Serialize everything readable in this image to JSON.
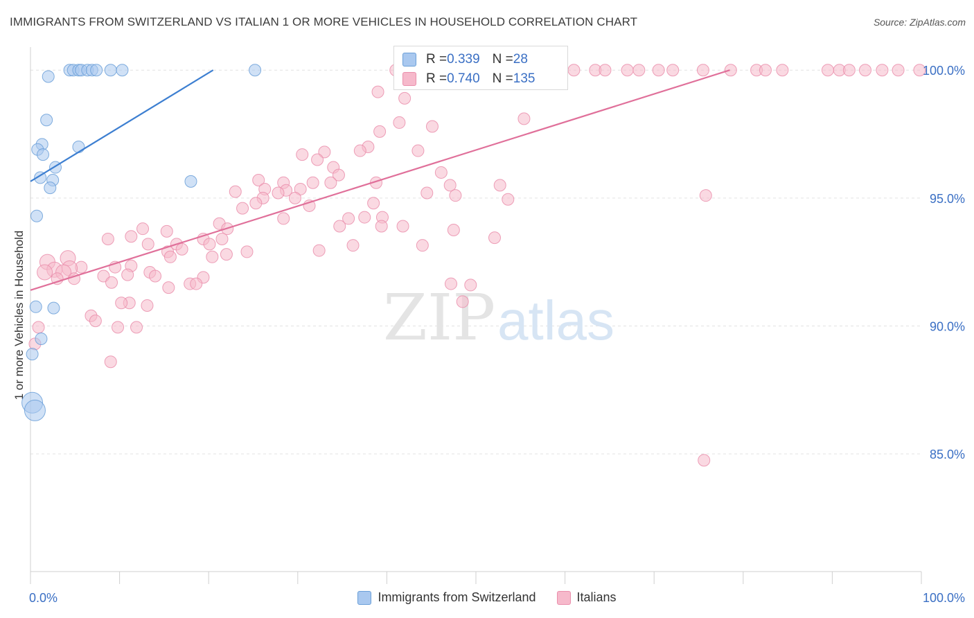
{
  "title": "IMMIGRANTS FROM SWITZERLAND VS ITALIAN 1 OR MORE VEHICLES IN HOUSEHOLD CORRELATION CHART",
  "source": "Source: ZipAtlas.com",
  "watermark": {
    "zip": "ZIP",
    "atlas": "atlas"
  },
  "stats": {
    "r_label": "R = ",
    "n_label": "N = ",
    "rows": [
      {
        "r": "0.339",
        "n": "28"
      },
      {
        "r": "0.740",
        "n": "135"
      }
    ]
  },
  "legend": [
    {
      "label": "Immigrants from Switzerland"
    },
    {
      "label": "Italians"
    }
  ],
  "colors": {
    "blue_fill": "#a9c8ef",
    "blue_stroke": "#6a9fd8",
    "blue_line": "#3d7fd1",
    "pink_fill": "#f6b9cb",
    "pink_stroke": "#ea8eab",
    "pink_line": "#e0709a",
    "tick_label": "#3a6fc4"
  },
  "chart_data": {
    "type": "scatter",
    "xlabel": "",
    "ylabel": "1 or more Vehicles in Household",
    "xlim": [
      0,
      100
    ],
    "ylim": [
      80.4,
      100.9
    ],
    "y_ticks": [
      {
        "value": 100,
        "label": "100.0%"
      },
      {
        "value": 95,
        "label": "95.0%"
      },
      {
        "value": 90,
        "label": "90.0%"
      },
      {
        "value": 85,
        "label": "85.0%"
      }
    ],
    "x_tick_labels": [
      {
        "value": 0,
        "label": "0.0%"
      },
      {
        "value": 100,
        "label": "100.0%"
      }
    ],
    "grid": true,
    "series": [
      {
        "name": "Immigrants from Switzerland",
        "trend": [
          [
            0.0,
            95.65
          ],
          [
            20.5,
            100.0
          ]
        ],
        "points": [
          [
            4.4,
            100
          ],
          [
            4.8,
            100
          ],
          [
            5.4,
            100
          ],
          [
            5.7,
            100
          ],
          [
            6.4,
            100
          ],
          [
            6.9,
            100
          ],
          [
            7.4,
            100
          ],
          [
            9.0,
            100
          ],
          [
            10.3,
            100
          ],
          [
            25.2,
            100
          ],
          [
            2.0,
            99.75
          ],
          [
            1.8,
            98.05
          ],
          [
            1.3,
            97.1
          ],
          [
            0.8,
            96.9
          ],
          [
            1.4,
            96.7
          ],
          [
            5.4,
            97.0
          ],
          [
            2.8,
            96.2
          ],
          [
            1.1,
            95.8
          ],
          [
            2.5,
            95.7
          ],
          [
            2.2,
            95.4
          ],
          [
            18.0,
            95.65
          ],
          [
            0.7,
            94.3
          ],
          [
            0.6,
            90.75
          ],
          [
            2.6,
            90.7
          ],
          [
            1.2,
            89.5
          ],
          [
            0.2,
            87.0
          ],
          [
            0.5,
            86.7
          ],
          [
            0.2,
            88.9
          ]
        ]
      },
      {
        "name": "Italians",
        "trend": [
          [
            0.0,
            91.4
          ],
          [
            78.5,
            100.0
          ]
        ],
        "points": [
          [
            41.0,
            100
          ],
          [
            42.5,
            100
          ],
          [
            43.5,
            100
          ],
          [
            45.0,
            100
          ],
          [
            46.2,
            100
          ],
          [
            47.5,
            100
          ],
          [
            48.6,
            100
          ],
          [
            49.5,
            100
          ],
          [
            50.6,
            100
          ],
          [
            51.8,
            100
          ],
          [
            53.0,
            100
          ],
          [
            54.1,
            100
          ],
          [
            56.0,
            100
          ],
          [
            57.2,
            100
          ],
          [
            59.3,
            100
          ],
          [
            61.0,
            100
          ],
          [
            63.4,
            100
          ],
          [
            64.5,
            100
          ],
          [
            67.0,
            100
          ],
          [
            68.3,
            100
          ],
          [
            70.5,
            100
          ],
          [
            72.1,
            100
          ],
          [
            75.5,
            100
          ],
          [
            78.6,
            100
          ],
          [
            81.5,
            100
          ],
          [
            82.5,
            100
          ],
          [
            84.4,
            100
          ],
          [
            89.5,
            100
          ],
          [
            90.8,
            100
          ],
          [
            91.9,
            100
          ],
          [
            93.7,
            100
          ],
          [
            95.6,
            100
          ],
          [
            97.4,
            100
          ],
          [
            99.8,
            100
          ],
          [
            39.0,
            99.15
          ],
          [
            42.0,
            98.9
          ],
          [
            55.4,
            98.1
          ],
          [
            41.4,
            97.95
          ],
          [
            45.1,
            97.8
          ],
          [
            39.2,
            97.6
          ],
          [
            37.9,
            97.0
          ],
          [
            37.0,
            96.85
          ],
          [
            43.5,
            96.85
          ],
          [
            30.5,
            96.7
          ],
          [
            33.0,
            96.8
          ],
          [
            32.2,
            96.5
          ],
          [
            34.0,
            96.2
          ],
          [
            46.1,
            96.0
          ],
          [
            34.6,
            95.9
          ],
          [
            25.6,
            95.7
          ],
          [
            28.4,
            95.6
          ],
          [
            31.7,
            95.6
          ],
          [
            33.7,
            95.6
          ],
          [
            38.8,
            95.6
          ],
          [
            47.1,
            95.5
          ],
          [
            52.7,
            95.5
          ],
          [
            26.3,
            95.35
          ],
          [
            30.3,
            95.35
          ],
          [
            28.7,
            95.3
          ],
          [
            23.0,
            95.25
          ],
          [
            27.8,
            95.2
          ],
          [
            44.5,
            95.2
          ],
          [
            47.7,
            95.1
          ],
          [
            75.8,
            95.1
          ],
          [
            26.1,
            95.0
          ],
          [
            29.7,
            95.0
          ],
          [
            53.6,
            94.95
          ],
          [
            25.3,
            94.8
          ],
          [
            38.5,
            94.8
          ],
          [
            31.3,
            94.7
          ],
          [
            23.8,
            94.6
          ],
          [
            28.4,
            94.2
          ],
          [
            35.7,
            94.2
          ],
          [
            37.5,
            94.25
          ],
          [
            39.5,
            94.25
          ],
          [
            21.2,
            94.0
          ],
          [
            22.1,
            93.8
          ],
          [
            34.7,
            93.9
          ],
          [
            39.4,
            93.9
          ],
          [
            41.8,
            93.9
          ],
          [
            47.5,
            93.75
          ],
          [
            12.6,
            93.8
          ],
          [
            15.3,
            93.7
          ],
          [
            11.3,
            93.5
          ],
          [
            19.4,
            93.4
          ],
          [
            21.5,
            93.4
          ],
          [
            16.4,
            93.2
          ],
          [
            13.2,
            93.2
          ],
          [
            8.7,
            93.4
          ],
          [
            20.1,
            93.2
          ],
          [
            36.2,
            93.15
          ],
          [
            44.0,
            93.15
          ],
          [
            52.1,
            93.45
          ],
          [
            17.0,
            93.0
          ],
          [
            15.4,
            92.9
          ],
          [
            24.3,
            92.9
          ],
          [
            22.0,
            92.8
          ],
          [
            32.4,
            92.95
          ],
          [
            15.7,
            92.7
          ],
          [
            20.4,
            92.7
          ],
          [
            4.2,
            92.65
          ],
          [
            1.9,
            92.5
          ],
          [
            11.3,
            92.35
          ],
          [
            9.5,
            92.3
          ],
          [
            5.7,
            92.3
          ],
          [
            4.4,
            92.25
          ],
          [
            2.7,
            92.2
          ],
          [
            1.6,
            92.1
          ],
          [
            3.7,
            92.1
          ],
          [
            13.4,
            92.1
          ],
          [
            8.2,
            91.95
          ],
          [
            10.9,
            92.0
          ],
          [
            14.0,
            91.95
          ],
          [
            3.0,
            91.85
          ],
          [
            4.9,
            91.85
          ],
          [
            19.4,
            91.9
          ],
          [
            17.9,
            91.65
          ],
          [
            18.6,
            91.65
          ],
          [
            47.2,
            91.65
          ],
          [
            49.4,
            91.6
          ],
          [
            9.1,
            91.7
          ],
          [
            15.5,
            91.5
          ],
          [
            48.5,
            90.95
          ],
          [
            11.1,
            90.9
          ],
          [
            10.2,
            90.9
          ],
          [
            13.1,
            90.8
          ],
          [
            6.8,
            90.4
          ],
          [
            7.3,
            90.2
          ],
          [
            0.9,
            89.95
          ],
          [
            9.8,
            89.95
          ],
          [
            11.9,
            89.95
          ],
          [
            0.5,
            89.3
          ],
          [
            9.0,
            88.6
          ],
          [
            75.6,
            84.75
          ]
        ]
      }
    ]
  }
}
